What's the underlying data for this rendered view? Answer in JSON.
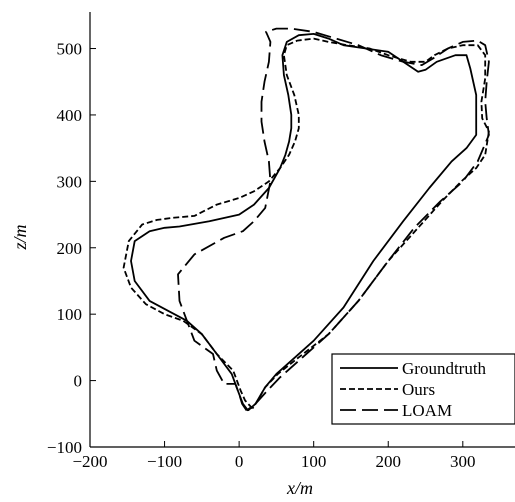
{
  "chart_data": {
    "type": "line",
    "xlabel": "x/m",
    "ylabel": "z/m",
    "xlim": [
      -200,
      370
    ],
    "ylim": [
      -100,
      555
    ],
    "xticks": [
      -200,
      -100,
      0,
      100,
      200,
      300
    ],
    "yticks": [
      -100,
      0,
      100,
      200,
      300,
      400,
      500
    ],
    "grid": false,
    "legend_position": "bottom-right",
    "series": [
      {
        "name": "Groundtruth",
        "dash": "solid",
        "x": [
          12,
          5,
          0,
          -10,
          -30,
          -50,
          -70,
          -95,
          -120,
          -140,
          -145,
          -140,
          -120,
          -100,
          -80,
          -40,
          0,
          20,
          40,
          55,
          62,
          67,
          70,
          70,
          66,
          60,
          58,
          64,
          80,
          100,
          120,
          140,
          170,
          200,
          220,
          240,
          250,
          265,
          290,
          305,
          310,
          318,
          318,
          305,
          285,
          255,
          220,
          180,
          140,
          100,
          70,
          50,
          35,
          22,
          12
        ],
        "y": [
          -45,
          -35,
          -20,
          10,
          40,
          70,
          90,
          105,
          120,
          150,
          180,
          210,
          225,
          230,
          232,
          240,
          250,
          265,
          290,
          320,
          340,
          360,
          380,
          400,
          430,
          460,
          490,
          510,
          520,
          522,
          515,
          505,
          500,
          495,
          480,
          465,
          468,
          480,
          490,
          490,
          470,
          430,
          370,
          350,
          330,
          290,
          240,
          180,
          110,
          60,
          30,
          10,
          -10,
          -35,
          -45
        ]
      },
      {
        "name": "Ours",
        "dash": "6,3",
        "x": [
          18,
          8,
          2,
          -8,
          -30,
          -50,
          -75,
          -100,
          -125,
          -145,
          -155,
          -148,
          -130,
          -110,
          -90,
          -60,
          -30,
          0,
          20,
          40,
          55,
          67,
          75,
          80,
          80,
          74,
          64,
          60,
          64,
          78,
          100,
          120,
          145,
          175,
          200,
          230,
          250,
          262,
          280,
          300,
          320,
          330,
          330,
          325,
          326,
          335,
          330,
          318,
          298,
          272,
          240,
          200,
          160,
          120,
          80,
          52,
          35,
          25,
          18
        ],
        "y": [
          -42,
          -30,
          -15,
          15,
          40,
          70,
          90,
          100,
          115,
          140,
          170,
          210,
          235,
          242,
          245,
          248,
          265,
          275,
          285,
          300,
          320,
          340,
          360,
          380,
          400,
          430,
          460,
          490,
          505,
          512,
          515,
          510,
          505,
          500,
          490,
          480,
          480,
          490,
          500,
          505,
          505,
          490,
          455,
          420,
          395,
          375,
          340,
          320,
          300,
          270,
          230,
          180,
          120,
          70,
          35,
          10,
          -10,
          -30,
          -42
        ]
      },
      {
        "name": "LOAM",
        "dash": "16,6",
        "x": [
          10,
          4,
          0,
          -5,
          -20,
          -30,
          -35,
          -60,
          -80,
          -82,
          -60,
          -20,
          5,
          20,
          35,
          42,
          40,
          34,
          30,
          30,
          34,
          40,
          42,
          38,
          36,
          50,
          70,
          100,
          130,
          160,
          190,
          220,
          245,
          260,
          280,
          300,
          320,
          330,
          335,
          332,
          330,
          332,
          335,
          320,
          300,
          270,
          235,
          200,
          160,
          120,
          80,
          55,
          38,
          22,
          10
        ],
        "y": [
          -45,
          -35,
          -20,
          -5,
          -5,
          15,
          40,
          60,
          120,
          160,
          190,
          215,
          225,
          240,
          260,
          300,
          330,
          360,
          390,
          420,
          450,
          480,
          510,
          520,
          525,
          530,
          530,
          525,
          515,
          505,
          490,
          480,
          475,
          485,
          500,
          510,
          512,
          505,
          480,
          450,
          420,
          395,
          370,
          330,
          300,
          270,
          230,
          180,
          120,
          70,
          30,
          5,
          -15,
          -35,
          -45
        ]
      }
    ]
  }
}
